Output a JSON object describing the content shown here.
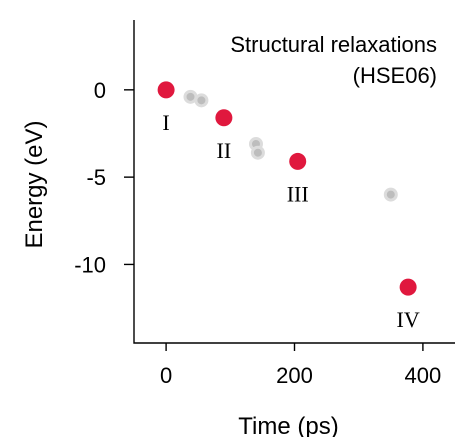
{
  "chart_data": {
    "type": "scatter",
    "title": "",
    "annotation": [
      "Structural relaxations",
      "(HSE06)"
    ],
    "xlabel": "Time (ps)",
    "ylabel": "Energy (eV)",
    "xlim": [
      -50,
      450
    ],
    "ylim": [
      -14.5,
      4
    ],
    "x_ticks": [
      0,
      200,
      400
    ],
    "y_ticks": [
      0,
      -5,
      -10
    ],
    "x_tick_labels": [
      "0",
      "200",
      "400"
    ],
    "y_tick_labels": [
      "0",
      "-5",
      "-10"
    ],
    "series": [
      {
        "role": "intermediate",
        "color": "#c8c8c8",
        "points": [
          {
            "x": 38,
            "y": -0.4
          },
          {
            "x": 55,
            "y": -0.6
          },
          {
            "x": 140,
            "y": -3.1
          },
          {
            "x": 143,
            "y": -3.6
          },
          {
            "x": 350,
            "y": -6.0
          }
        ]
      },
      {
        "role": "highlighted",
        "color": "#e0183e",
        "points": [
          {
            "x": 0,
            "y": 0.0,
            "label": "I"
          },
          {
            "x": 90,
            "y": -1.6,
            "label": "II"
          },
          {
            "x": 205,
            "y": -4.1,
            "label": "III"
          },
          {
            "x": 377,
            "y": -11.3,
            "label": "IV"
          }
        ]
      }
    ]
  }
}
